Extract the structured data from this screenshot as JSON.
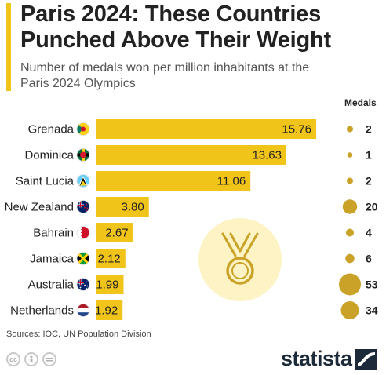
{
  "header": {
    "title_line1": "Paris 2024: These Countries",
    "title_line2": "Punched Above Their Weight",
    "subtitle_line1": "Number of medals won per million inhabitants at the",
    "subtitle_line2": "Paris 2024 Olympics",
    "medals_heading": "Medals"
  },
  "footer": {
    "sources": "Sources: IOC, UN Population Division",
    "brand": "statista",
    "license_icons": [
      "cc-icon",
      "by-icon",
      "nd-icon"
    ]
  },
  "colors": {
    "bar": "#f0c419",
    "accent": "#f0c419",
    "bubble": "#c9a227",
    "medal_bg": "#fdf3c4",
    "medal": "#c9a227"
  },
  "chart_data": {
    "type": "bar",
    "orientation": "horizontal",
    "title": "Paris 2024: These Countries Punched Above Their Weight",
    "subtitle": "Number of medals won per million inhabitants at the Paris 2024 Olympics",
    "categories": [
      "Grenada",
      "Dominica",
      "Saint Lucia",
      "New Zealand",
      "Bahrain",
      "Jamaica",
      "Australia",
      "Netherlands"
    ],
    "values": [
      15.76,
      13.63,
      11.06,
      3.8,
      2.67,
      2.12,
      1.99,
      1.92
    ],
    "value_labels": [
      "15.76",
      "13.63",
      "11.06",
      "3.80",
      "2.67",
      "2.12",
      "1.99",
      "1.92"
    ],
    "medals": [
      2,
      1,
      2,
      20,
      4,
      6,
      53,
      34
    ],
    "medals_label": "Medals",
    "xlim": [
      0,
      17.5
    ],
    "grid": false
  }
}
